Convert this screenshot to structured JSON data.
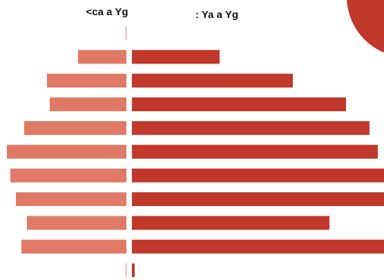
{
  "chart_data": {
    "type": "butterfly",
    "series": [
      {
        "name": "<ca a Yg",
        "color": "#e07a67",
        "values": [
          1,
          70,
          115,
          111,
          148,
          173,
          168,
          160,
          144,
          152,
          1
        ]
      },
      {
        "name": ": Ya a Yg",
        "color": "#c0392b",
        "values": [
          0,
          127,
          233,
          310,
          344,
          356,
          370,
          368,
          286,
          370,
          4
        ]
      }
    ],
    "xlim": [
      0,
      365
    ]
  }
}
